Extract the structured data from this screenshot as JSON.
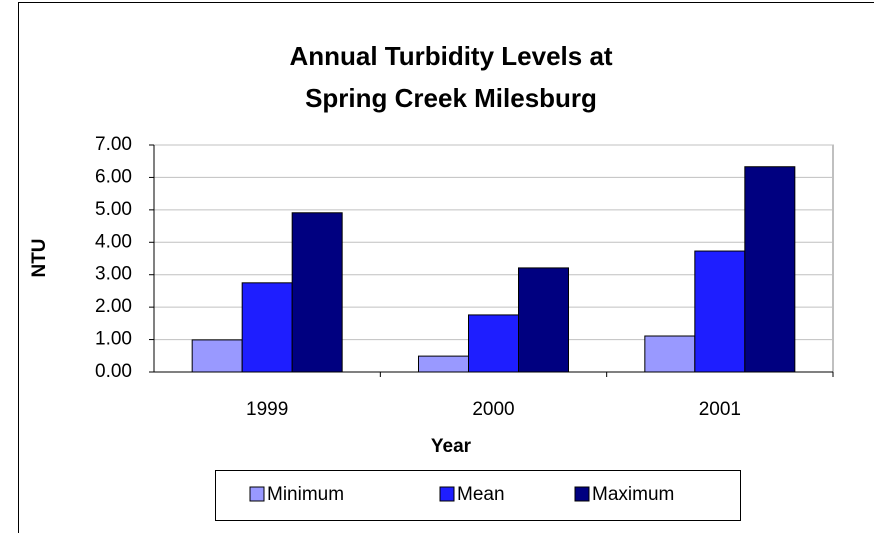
{
  "chart_data": {
    "type": "bar",
    "title": [
      "Annual Turbidity Levels at",
      "Spring Creek Milesburg"
    ],
    "x_label": "Year",
    "y_label": "NTU",
    "categories": [
      "1999",
      "2000",
      "2001"
    ],
    "series": [
      {
        "name": "Minimum",
        "color": "#9999ff",
        "values": [
          0.99,
          0.49,
          1.11
        ]
      },
      {
        "name": "Mean",
        "color": "#1e1eff",
        "values": [
          2.75,
          1.76,
          3.73
        ]
      },
      {
        "name": "Maximum",
        "color": "#000080",
        "values": [
          4.91,
          3.21,
          6.33
        ]
      }
    ],
    "ylim": [
      0,
      7
    ],
    "yticks": [
      {
        "value": 0,
        "label": "0.00"
      },
      {
        "value": 1,
        "label": "1.00"
      },
      {
        "value": 2,
        "label": "2.00"
      },
      {
        "value": 3,
        "label": "3.00"
      },
      {
        "value": 4,
        "label": "4.00"
      },
      {
        "value": 5,
        "label": "5.00"
      },
      {
        "value": 6,
        "label": "6.00"
      },
      {
        "value": 7,
        "label": "7.00"
      }
    ],
    "grid": true,
    "legend": "bottom"
  }
}
